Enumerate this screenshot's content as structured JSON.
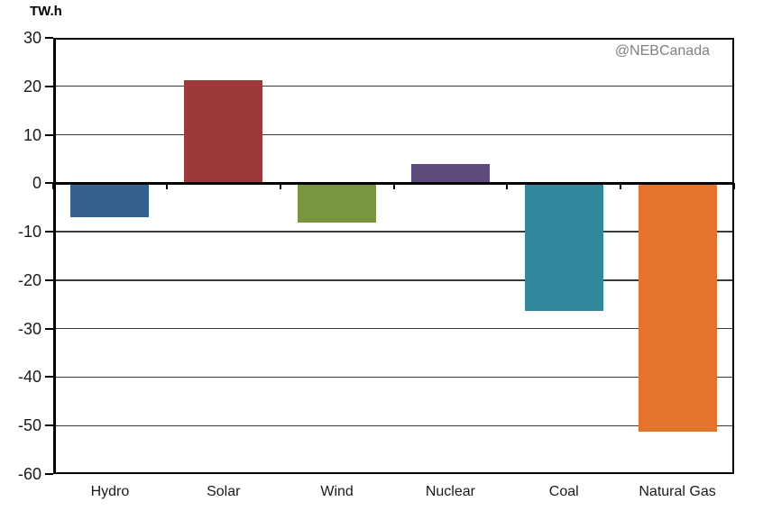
{
  "chart_data": {
    "type": "bar",
    "title": "",
    "unit_label": "TW.h",
    "watermark": "@NEBCanada",
    "categories": [
      "Hydro",
      "Solar",
      "Wind",
      "Nuclear",
      "Coal",
      "Natural Gas"
    ],
    "values": [
      -7,
      21.3,
      -8.2,
      3.9,
      -26.3,
      -51.2
    ],
    "bar_colors": [
      "#35618E",
      "#9C3A39",
      "#789540",
      "#5F4A7D",
      "#31879B",
      "#E2742B"
    ],
    "ylim": [
      -60,
      30
    ],
    "yticks": [
      30,
      20,
      10,
      0,
      -10,
      -20,
      -30,
      -40,
      -50,
      -60
    ],
    "xlabel": "",
    "ylabel": "TW.h",
    "grid": "horizontal",
    "legend": "none"
  },
  "colors": {
    "axis": "#000000",
    "gridline": "#3A3A3A",
    "tick_text": "#1A1A1A",
    "watermark_text": "#808080",
    "background": "#FFFFFF"
  }
}
